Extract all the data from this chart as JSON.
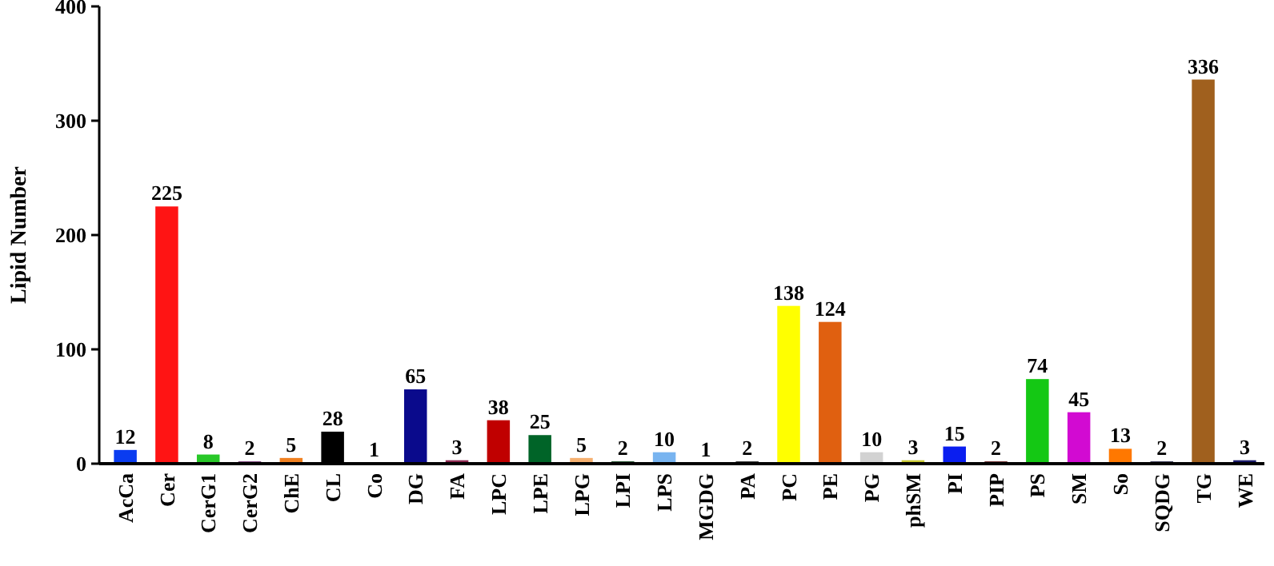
{
  "chart_data": {
    "type": "bar",
    "ylabel": "Lipid Number",
    "categories": [
      "AcCa",
      "Cer",
      "CerG1",
      "CerG2",
      "ChE",
      "CL",
      "Co",
      "DG",
      "FA",
      "LPC",
      "LPE",
      "LPG",
      "LPI",
      "LPS",
      "MGDG",
      "PA",
      "PC",
      "PE",
      "PG",
      "phSM",
      "PI",
      "PIP",
      "PS",
      "SM",
      "So",
      "SQDG",
      "TG",
      "WE"
    ],
    "values": [
      12,
      225,
      8,
      2,
      5,
      28,
      1,
      65,
      3,
      38,
      25,
      5,
      2,
      10,
      1,
      2,
      138,
      124,
      10,
      3,
      15,
      2,
      74,
      45,
      13,
      2,
      336,
      3
    ],
    "colors": [
      "#0a3cf0",
      "#ff1414",
      "#28c828",
      "#6a2a6a",
      "#f08020",
      "#000000",
      "#222222",
      "#0a0a8c",
      "#8c2850",
      "#c00000",
      "#006428",
      "#f5b070",
      "#0a3c14",
      "#78b4f0",
      "#202020",
      "#202020",
      "#ffff00",
      "#e06010",
      "#d2d2d2",
      "#c8c832",
      "#0a1ef0",
      "#5a1414",
      "#14c814",
      "#d20ad2",
      "#ff7800",
      "#202040",
      "#a0601e",
      "#1a1a6a"
    ],
    "data_labels": true,
    "ylim": [
      0,
      400
    ],
    "yticks": [
      0,
      100,
      200,
      300,
      400
    ]
  }
}
